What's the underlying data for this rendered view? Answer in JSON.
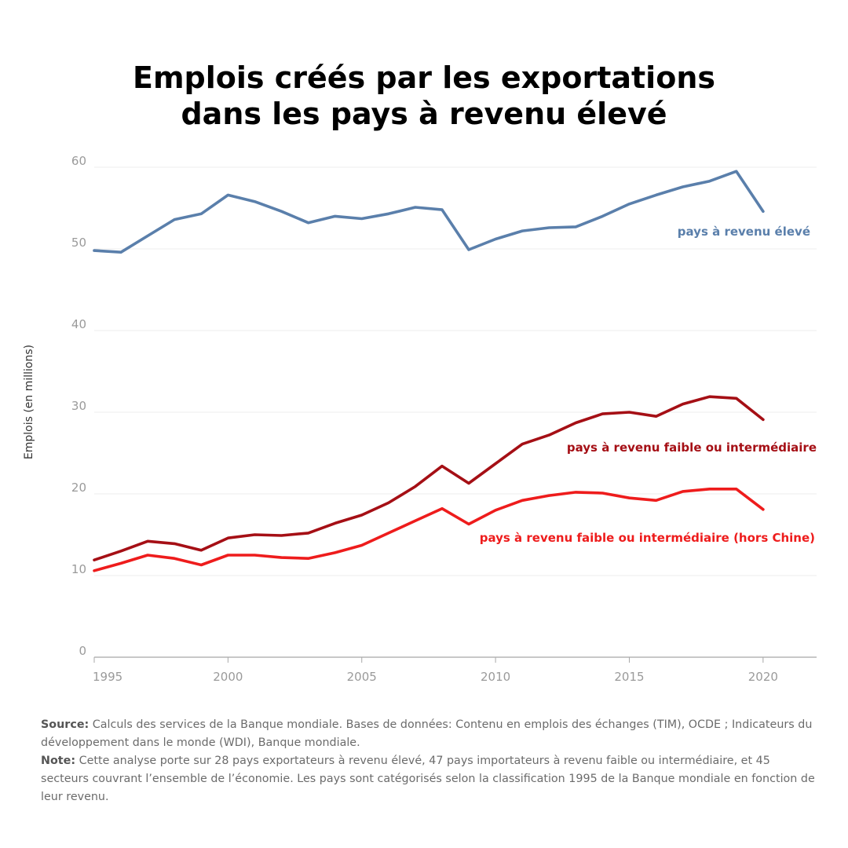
{
  "chart_data": {
    "type": "line",
    "title_lines": [
      "Emplois créés par les exportations",
      "dans les pays à revenu élevé"
    ],
    "xlabel": "",
    "ylabel": "Emplois (en millions)",
    "xlim": [
      1995,
      2022
    ],
    "ylim": [
      0,
      60
    ],
    "x_ticks": [
      1995,
      2000,
      2005,
      2010,
      2015,
      2020
    ],
    "y_ticks": [
      0,
      10,
      20,
      30,
      40,
      50,
      60
    ],
    "grid": "horizontal",
    "x": [
      1995,
      1996,
      1997,
      1998,
      1999,
      2000,
      2001,
      2002,
      2003,
      2004,
      2005,
      2006,
      2007,
      2008,
      2009,
      2010,
      2011,
      2012,
      2013,
      2014,
      2015,
      2016,
      2017,
      2018,
      2019,
      2020
    ],
    "series": [
      {
        "name": "pays à revenu élevé",
        "color": "#5a7fab",
        "values": [
          49.8,
          49.6,
          51.6,
          53.6,
          54.3,
          56.6,
          55.8,
          54.6,
          53.2,
          54.0,
          53.7,
          54.3,
          55.1,
          54.8,
          49.9,
          51.2,
          52.2,
          52.6,
          52.7,
          54.0,
          55.5,
          56.6,
          57.6,
          58.3,
          59.5,
          54.6
        ]
      },
      {
        "name": "pays à revenu faible ou intermédiaire",
        "color": "#a50f15",
        "values": [
          11.9,
          13.0,
          14.2,
          13.9,
          13.1,
          14.6,
          15.0,
          14.9,
          15.2,
          16.4,
          17.4,
          18.9,
          20.9,
          23.4,
          21.3,
          23.7,
          26.1,
          27.2,
          28.7,
          29.8,
          30.0,
          29.5,
          31.0,
          31.9,
          31.7,
          29.1
        ]
      },
      {
        "name": "pays à revenu faible ou intermédiaire (hors Chine)",
        "color": "#ee1c1c",
        "values": [
          10.6,
          11.5,
          12.5,
          12.1,
          11.3,
          12.5,
          12.5,
          12.2,
          12.1,
          12.8,
          13.7,
          15.2,
          16.7,
          18.2,
          16.3,
          18.0,
          19.2,
          19.8,
          20.2,
          20.1,
          19.5,
          19.2,
          20.3,
          20.6,
          20.6,
          18.1
        ]
      }
    ]
  },
  "footnote": {
    "source_label": "Source:",
    "source_text": "Calculs des services de la Banque mondiale. Bases de données: Contenu en emplois des échanges (TIM), OCDE ; Indicateurs du développement dans le monde (WDI), Banque mondiale.",
    "note_label": "Note:",
    "note_text": "Cette analyse porte sur 28 pays exportateurs à revenu élevé, 47 pays importateurs à revenu faible ou intermédiaire, et 45 secteurs couvrant l’ensemble de l’économie. Les pays sont catégorisés selon la classification 1995 de la Banque mondiale en fonction de leur revenu."
  }
}
